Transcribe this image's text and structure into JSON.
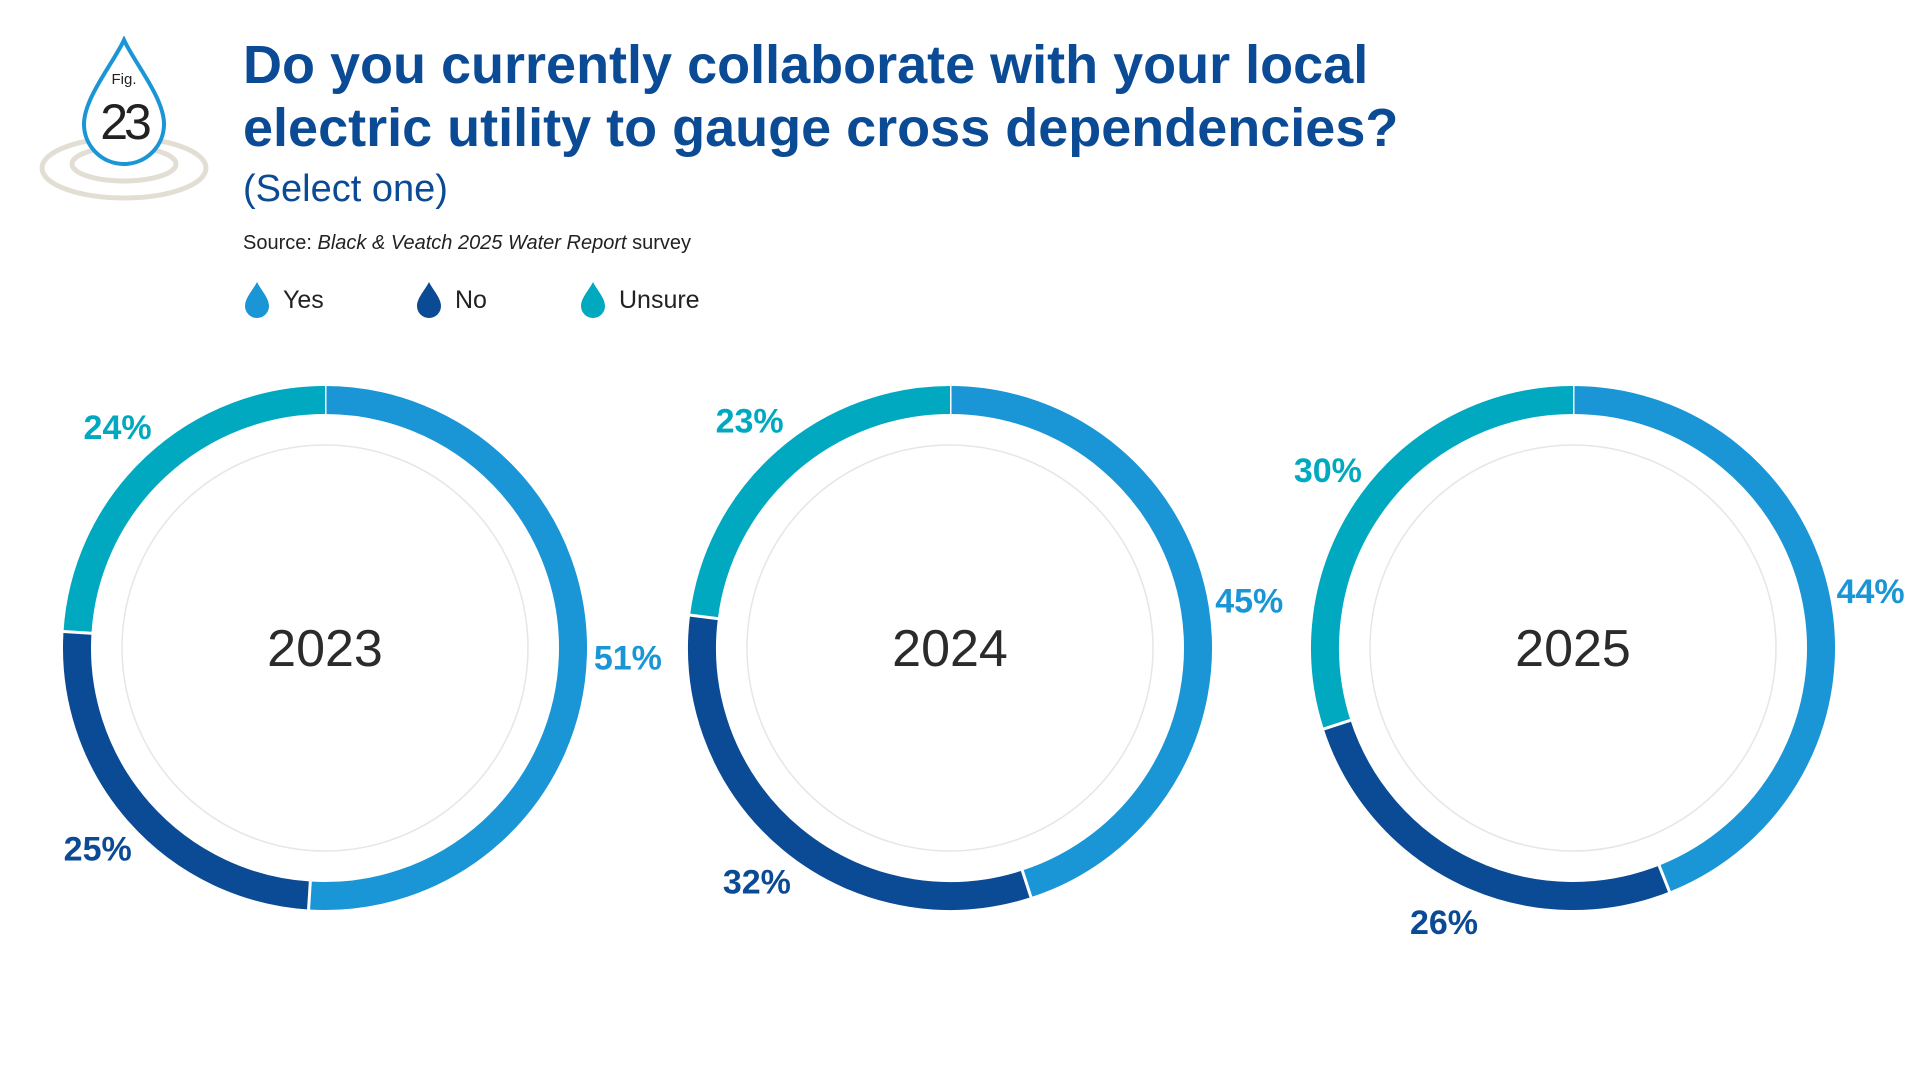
{
  "badge": {
    "fig_label": "Fig.",
    "fig_number": "23"
  },
  "header": {
    "title_line1": "Do you currently collaborate with your local",
    "title_line2": "electric utility to gauge cross dependencies?",
    "subtitle": "(Select one)",
    "source_prefix": "Source:",
    "source_title": "Black & Veatch 2025 Water Report",
    "source_suffix": "survey"
  },
  "legend": [
    {
      "label": "Yes",
      "color": "#1a95d6"
    },
    {
      "label": "No",
      "color": "#0b4a94"
    },
    {
      "label": "Unsure",
      "color": "#00a9bf"
    }
  ],
  "colors": {
    "yes": "#1a95d6",
    "no": "#0b4a94",
    "unsure": "#00a9bf",
    "title": "#0b4a94",
    "ring_bg": "#e6e6e6"
  },
  "chart_data": [
    {
      "type": "pie",
      "center_label": "2023",
      "categories": [
        "Yes",
        "No",
        "Unsure"
      ],
      "values": [
        51,
        25,
        24
      ],
      "labels": [
        "51%",
        "25%",
        "24%"
      ]
    },
    {
      "type": "pie",
      "center_label": "2024",
      "categories": [
        "Yes",
        "No",
        "Unsure"
      ],
      "values": [
        45,
        32,
        23
      ],
      "labels": [
        "45%",
        "32%",
        "23%"
      ]
    },
    {
      "type": "pie",
      "center_label": "2025",
      "categories": [
        "Yes",
        "No",
        "Unsure"
      ],
      "values": [
        44,
        26,
        30
      ],
      "labels": [
        "44%",
        "26%",
        "30%"
      ]
    }
  ]
}
